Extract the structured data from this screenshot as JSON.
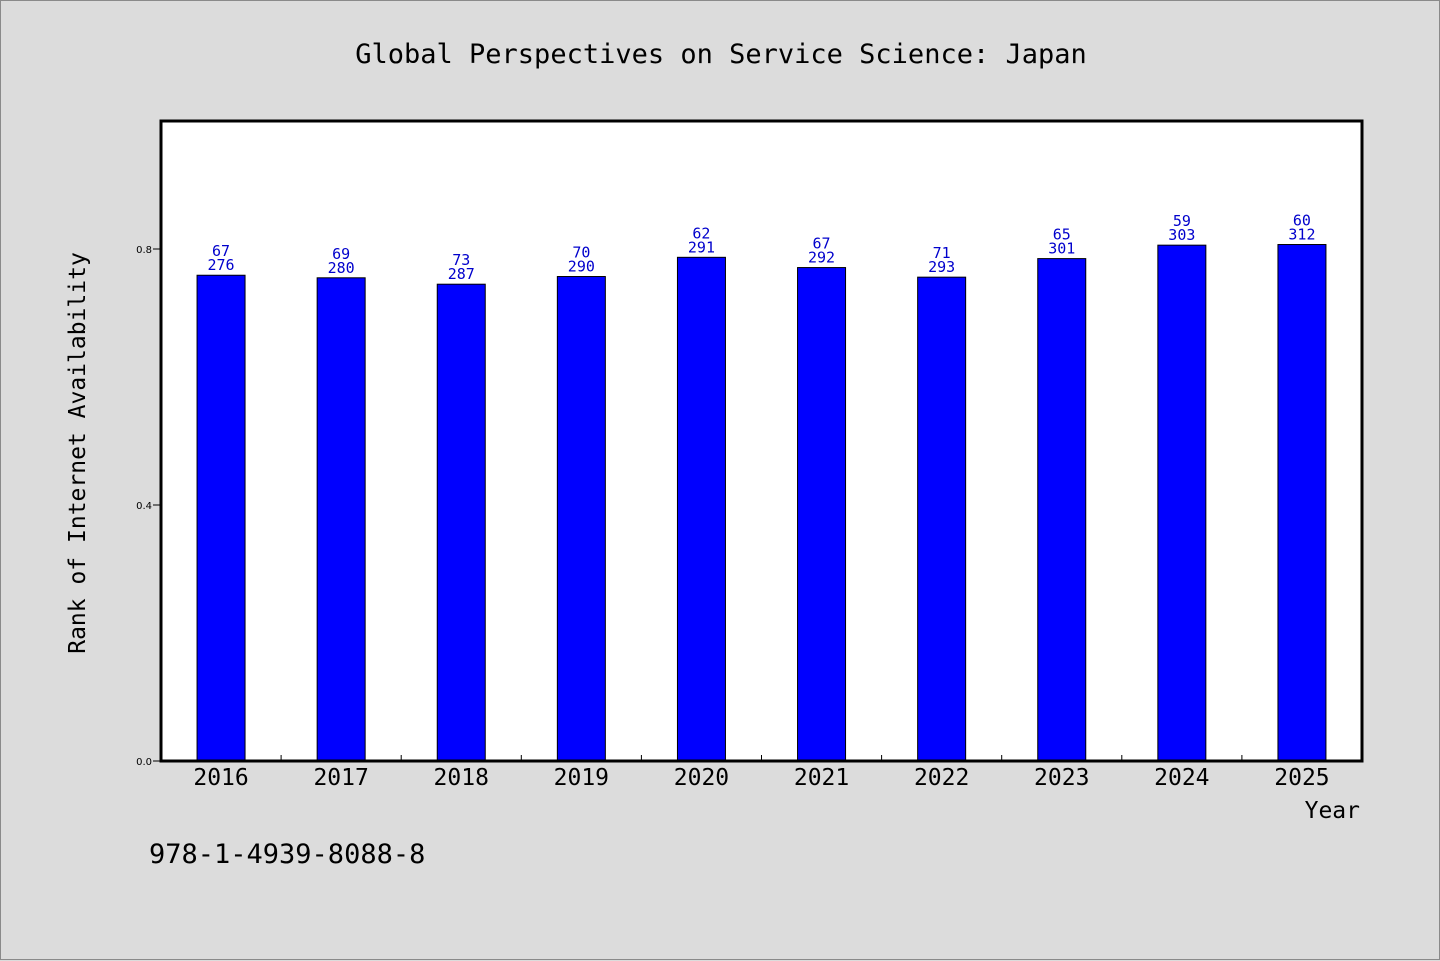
{
  "chart_data": {
    "type": "bar",
    "title": "Global Perspectives on Service Science: Japan",
    "xlabel": "Year",
    "ylabel": "Rank of Internet Availability",
    "categories": [
      "2016",
      "2017",
      "2018",
      "2019",
      "2020",
      "2021",
      "2022",
      "2023",
      "2024",
      "2025"
    ],
    "values": [
      0.759,
      0.755,
      0.745,
      0.757,
      0.787,
      0.771,
      0.756,
      0.785,
      0.806,
      0.807
    ],
    "label_top": [
      "67",
      "69",
      "73",
      "70",
      "62",
      "67",
      "71",
      "65",
      "59",
      "60"
    ],
    "label_bottom": [
      "276",
      "280",
      "287",
      "290",
      "291",
      "292",
      "293",
      "301",
      "303",
      "312"
    ],
    "yticks": [
      0.0,
      0.4,
      0.8
    ],
    "ytick_labels": [
      "0.0",
      "0.4",
      "0.8"
    ],
    "ylim": [
      0,
      1.0
    ],
    "grid": false,
    "bar_color": "#0000ff",
    "label_color": "#0000cc"
  },
  "footnote": "978-1-4939-8088-8"
}
